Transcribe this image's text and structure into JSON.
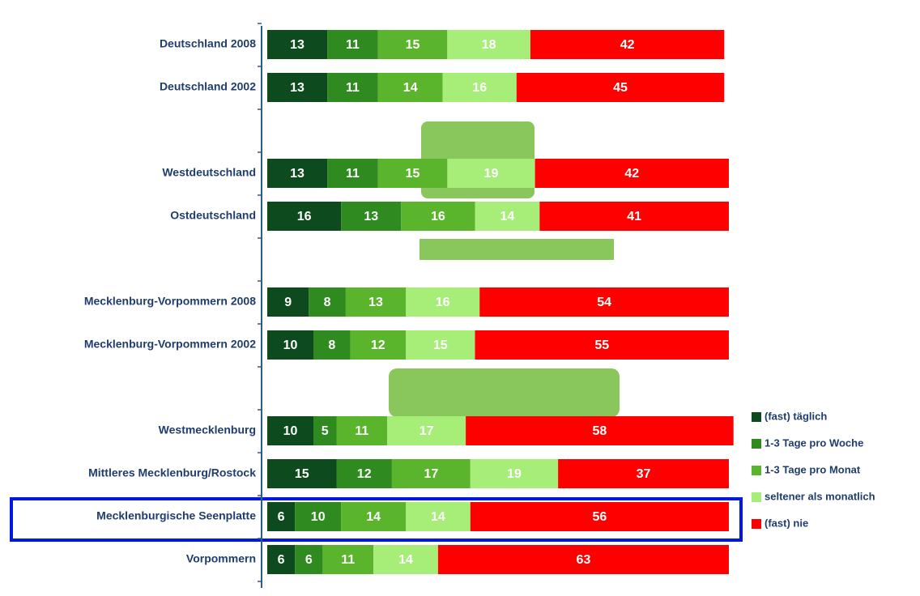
{
  "chart_data": {
    "type": "stacked-bar-horizontal",
    "categories": [
      "Deutschland 2008",
      "Deutschland 2002",
      null,
      "Westdeutschland",
      "Ostdeutschland",
      null,
      "Mecklenburg-Vorpommern 2008",
      "Mecklenburg-Vorpommern 2002",
      null,
      "Westmecklenburg",
      "Mittleres Mecklenburg/Rostock",
      "Mecklenburgische Seenplatte",
      "Vorpommern"
    ],
    "series": [
      {
        "name": "(fast) täglich",
        "color": "#0d4a1e",
        "values": [
          13,
          13,
          null,
          13,
          16,
          null,
          9,
          10,
          null,
          10,
          15,
          6,
          6
        ]
      },
      {
        "name": "1-3 Tage pro Woche",
        "color": "#2f8a1f",
        "values": [
          11,
          11,
          null,
          11,
          13,
          null,
          8,
          8,
          null,
          5,
          12,
          10,
          6
        ]
      },
      {
        "name": "1-3 Tage pro Monat",
        "color": "#5bb52c",
        "values": [
          15,
          14,
          null,
          15,
          16,
          null,
          13,
          12,
          null,
          11,
          17,
          14,
          11
        ]
      },
      {
        "name": "seltener als monatlich",
        "color": "#a6ee78",
        "values": [
          18,
          16,
          null,
          19,
          14,
          null,
          16,
          15,
          null,
          17,
          19,
          14,
          14
        ]
      },
      {
        "name": "(fast) nie",
        "color": "#ff0000",
        "values": [
          42,
          45,
          null,
          42,
          41,
          null,
          54,
          55,
          null,
          58,
          37,
          56,
          63
        ]
      }
    ],
    "xlim": [
      0,
      100
    ]
  }
}
